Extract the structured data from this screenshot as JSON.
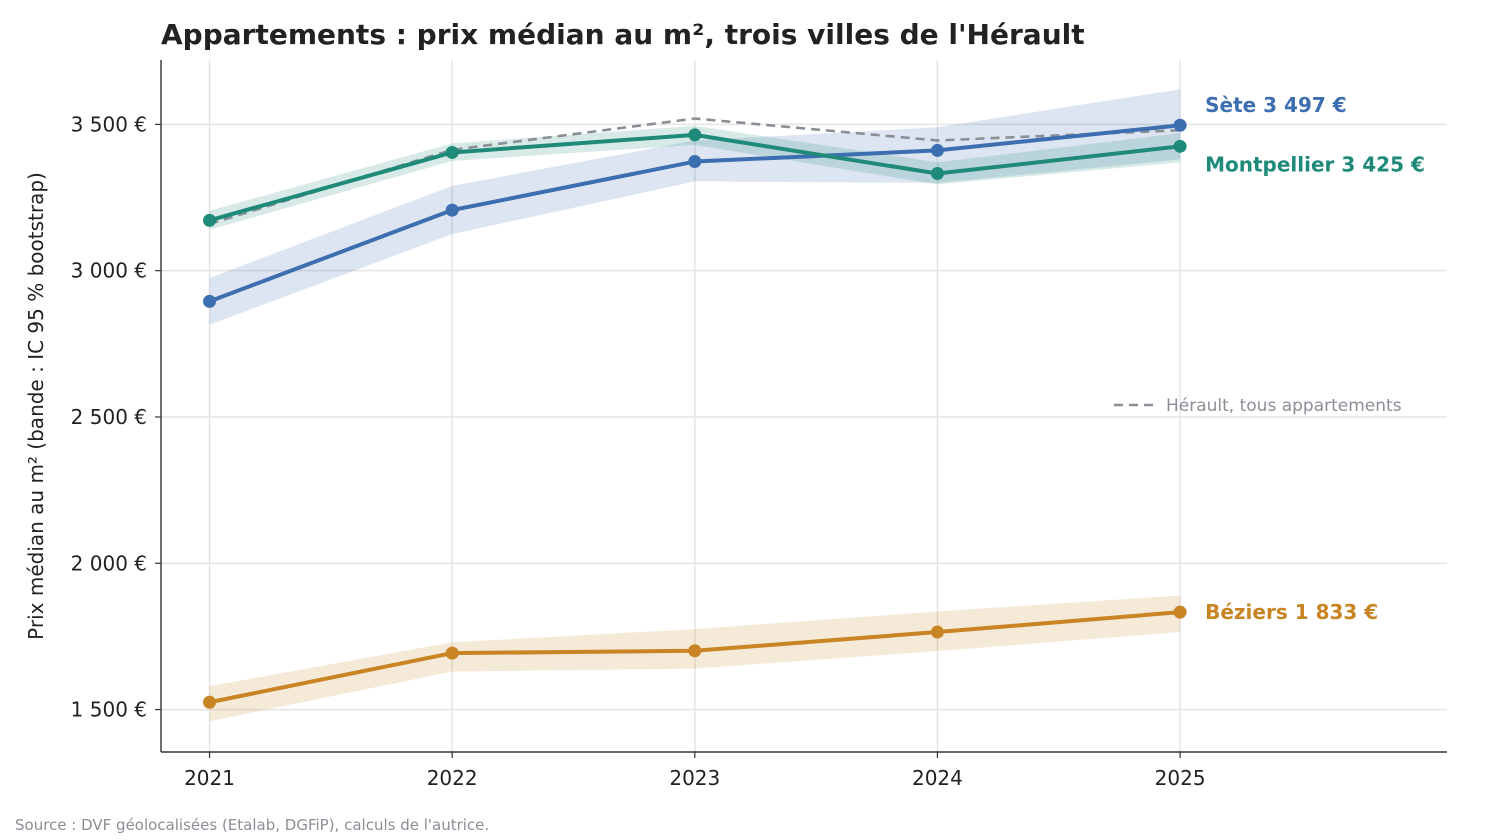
{
  "chart_data": {
    "type": "line",
    "title": "Appartements : prix médian au m², trois villes de l'Hérault",
    "ylabel": "Prix médian au m² (bande : IC 95 % bootstrap)",
    "xlabel": "",
    "x": [
      2021,
      2022,
      2023,
      2024,
      2025
    ],
    "xlim": [
      2020.8,
      2026.1
    ],
    "ylim": [
      1355,
      3720
    ],
    "yticks": [
      {
        "value": 1500,
        "label": "1 500 €"
      },
      {
        "value": 2000,
        "label": "2 000 €"
      },
      {
        "value": 2500,
        "label": "2 500 €"
      },
      {
        "value": 3000,
        "label": "3 000 €"
      },
      {
        "value": 3500,
        "label": "3 500 €"
      }
    ],
    "grid": true,
    "series": [
      {
        "name": "Sète",
        "color": "#3d6eb0",
        "values": [
          2895,
          3207,
          3373,
          3411,
          3497
        ],
        "ci_lower": [
          2815,
          3125,
          3305,
          3300,
          3380
        ],
        "ci_upper": [
          2975,
          3290,
          3445,
          3490,
          3620
        ],
        "end_label": "Sète  3 497 €"
      },
      {
        "name": "Montpellier",
        "color": "#1f8a7a",
        "values": [
          3172,
          3404,
          3464,
          3332,
          3425
        ],
        "ci_lower": [
          3140,
          3375,
          3430,
          3295,
          3370
        ],
        "ci_upper": [
          3205,
          3435,
          3495,
          3370,
          3470
        ],
        "end_label": "Montpellier  3 425 €"
      },
      {
        "name": "Béziers",
        "color": "#c98423",
        "values": [
          1525,
          1693,
          1701,
          1765,
          1833
        ],
        "ci_lower": [
          1460,
          1630,
          1640,
          1700,
          1765
        ],
        "ci_upper": [
          1580,
          1730,
          1775,
          1835,
          1890
        ],
        "end_label": "Béziers  1 833 €"
      }
    ],
    "reference_line": {
      "name": "Hérault, tous appartements",
      "color": "#8a8f96",
      "style": "dashed",
      "values": [
        3160,
        3413,
        3520,
        3445,
        3480
      ]
    },
    "legend": {
      "placement": "right",
      "entries": [
        "Hérault, tous appartements"
      ]
    }
  },
  "footer": {
    "source": "Source : DVF géolocalisées (Etalab, DGFiP), calculs de l'autrice."
  }
}
